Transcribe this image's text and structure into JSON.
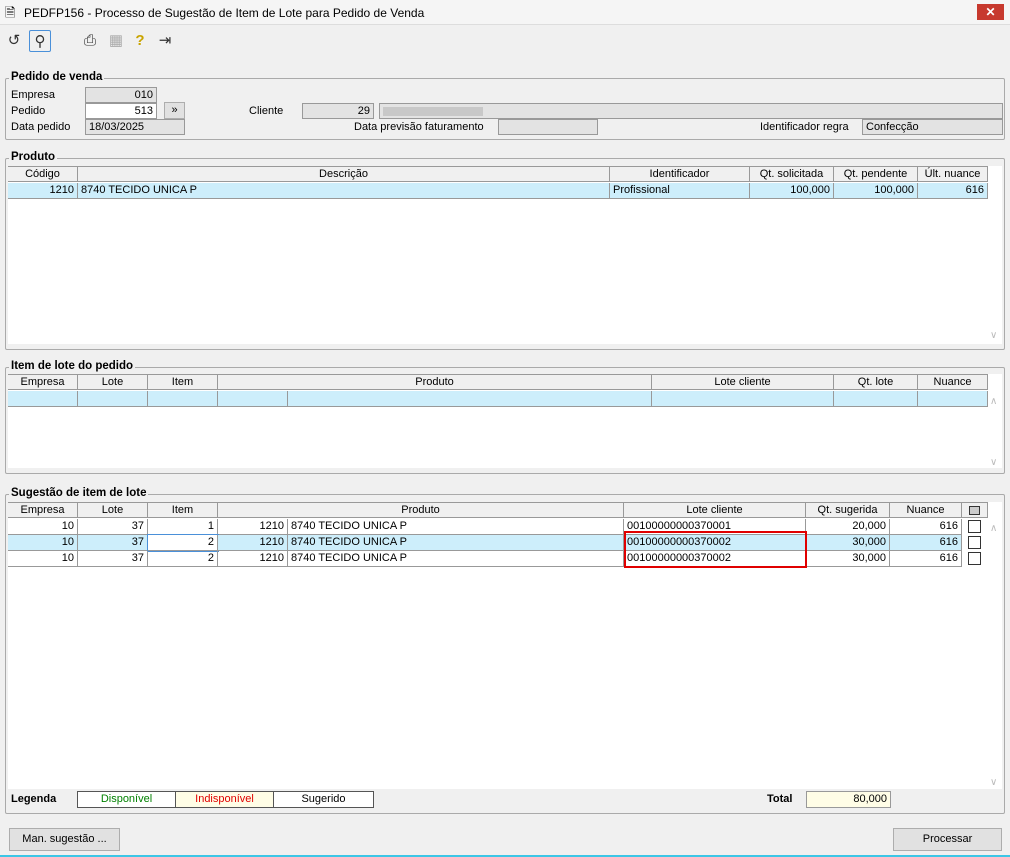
{
  "window": {
    "title": "PEDFP156 - Processo de Sugestão de Item de Lote para Pedido de Venda",
    "close": "✕"
  },
  "toolbar": {
    "icons": [
      "undo-icon",
      "search-icon",
      "print-icon",
      "grid-icon",
      "help-icon",
      "exit-icon"
    ]
  },
  "pedido": {
    "group": "Pedido de venda",
    "empresa_label": "Empresa",
    "empresa": "010",
    "pedido_label": "Pedido",
    "pedido": "513",
    "go": "»",
    "data_label": "Data pedido",
    "data": "18/03/2025",
    "cliente_label": "Cliente",
    "cliente": "29",
    "previsao_label": "Data previsão faturamento",
    "previsao": "",
    "regra_label": "Identificador regra",
    "regra": "Confecção"
  },
  "produto": {
    "group": "Produto",
    "headers": [
      "Código",
      "Descrição",
      "Identificador",
      "Qt. solicitada",
      "Qt. pendente",
      "Últ. nuance"
    ],
    "rows": [
      [
        "1210",
        "8740 TECIDO UNICA P",
        "Profissional",
        "100,000",
        "100,000",
        "616"
      ]
    ]
  },
  "item_lote": {
    "group": "Item de lote do pedido",
    "headers": [
      "Empresa",
      "Lote",
      "Item",
      "Produto",
      "Lote cliente",
      "Qt. lote",
      "Nuance"
    ]
  },
  "sugestao": {
    "group": "Sugestão de item de lote",
    "headers": [
      "Empresa",
      "Lote",
      "Item",
      "Produto",
      "Lote cliente",
      "Qt. sugerida",
      "Nuance"
    ],
    "rows": [
      [
        "10",
        "37",
        "1",
        "1210",
        "8740 TECIDO UNICA P",
        "00100000000370001",
        "20,000",
        "616"
      ],
      [
        "10",
        "37",
        "2",
        "1210",
        "8740 TECIDO UNICA P",
        "00100000000370002",
        "30,000",
        "616"
      ],
      [
        "10",
        "37",
        "2",
        "1210",
        "8740 TECIDO UNICA P",
        "00100000000370002",
        "30,000",
        "616"
      ]
    ]
  },
  "legenda": {
    "label": "Legenda",
    "disponivel": "Disponível",
    "indisponivel": "Indisponível",
    "sugerido": "Sugerido",
    "total_label": "Total",
    "total": "80,000"
  },
  "colors": {
    "disponivel": "#008000",
    "indisponivel": "#e00000",
    "selected": "#cdeefb",
    "highlight": "#e00000"
  },
  "buttons": {
    "man_sugestao": "Man. sugestão ...",
    "processar": "Processar"
  }
}
